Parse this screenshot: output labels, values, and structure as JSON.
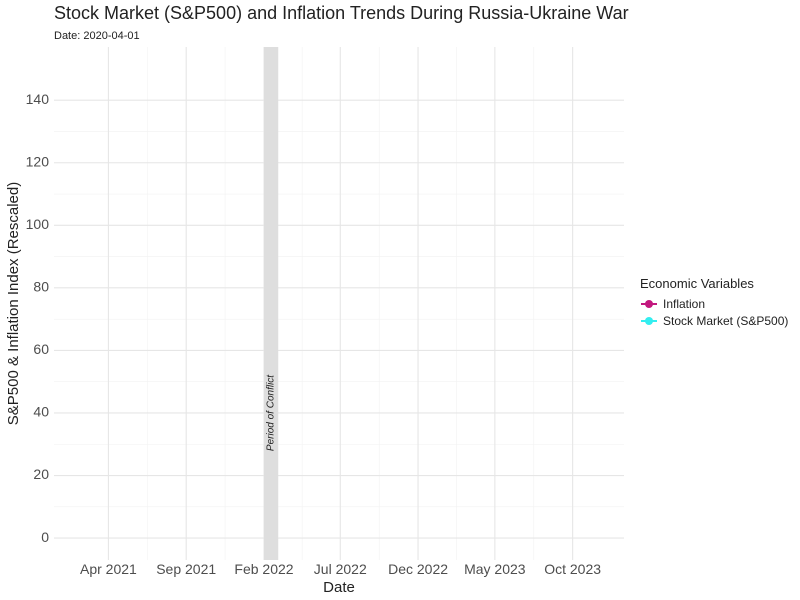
{
  "chart_data": {
    "type": "line",
    "title": "Stock Market (S&P500) and Inflation Trends During Russia-Ukraine War",
    "subtitle": "Date: 2020-04-01",
    "xlabel": "Date",
    "ylabel": "S&P500 & Inflation Index (Rescaled)",
    "x_tick_labels": [
      "Apr 2021",
      "Sep 2021",
      "Feb 2022",
      "Jul 2022",
      "Dec 2022",
      "May 2023",
      "Oct 2023"
    ],
    "x_ticks": [
      "2021-04-01",
      "2021-09-01",
      "2022-02-01",
      "2022-07-01",
      "2022-12-01",
      "2023-05-01",
      "2023-10-01"
    ],
    "xlim": [
      "2020-12-15",
      "2024-01-10"
    ],
    "y_ticks": [
      0,
      20,
      40,
      60,
      80,
      100,
      120,
      140
    ],
    "ylim": [
      -7,
      157
    ],
    "grid": true,
    "legend_position": "right",
    "legend_title": "Economic Variables",
    "series": [
      {
        "name": "Inflation",
        "color": "#C2187E",
        "values": []
      },
      {
        "name": "Stock Market (S&P500)",
        "color": "#33EEF0",
        "values": []
      }
    ],
    "annotation": {
      "label": "Period of Conflict",
      "start": "2022-02-01",
      "end": "2022-03-01",
      "color": "#dedede"
    }
  }
}
